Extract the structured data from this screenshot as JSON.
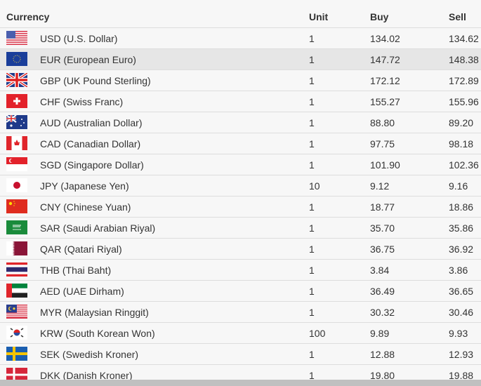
{
  "table": {
    "headers": [
      "Currency",
      "Unit",
      "Buy",
      "Sell"
    ],
    "highlight_color": "#e6e6e6",
    "rows": [
      {
        "flag": "us-flag-icon",
        "currency": "USD (U.S. Dollar)",
        "unit": "1",
        "buy": "134.02",
        "sell": "134.62"
      },
      {
        "flag": "eu-flag-icon",
        "currency": "EUR (European Euro)",
        "unit": "1",
        "buy": "147.72",
        "sell": "148.38",
        "highlighted": true
      },
      {
        "flag": "gb-flag-icon",
        "currency": "GBP (UK Pound Sterling)",
        "unit": "1",
        "buy": "172.12",
        "sell": "172.89"
      },
      {
        "flag": "ch-flag-icon",
        "currency": "CHF (Swiss Franc)",
        "unit": "1",
        "buy": "155.27",
        "sell": "155.96"
      },
      {
        "flag": "au-flag-icon",
        "currency": "AUD (Australian Dollar)",
        "unit": "1",
        "buy": "88.80",
        "sell": "89.20"
      },
      {
        "flag": "ca-flag-icon",
        "currency": "CAD (Canadian Dollar)",
        "unit": "1",
        "buy": "97.75",
        "sell": "98.18"
      },
      {
        "flag": "sg-flag-icon",
        "currency": "SGD (Singapore Dollar)",
        "unit": "1",
        "buy": "101.90",
        "sell": "102.36"
      },
      {
        "flag": "jp-flag-icon",
        "currency": "JPY (Japanese Yen)",
        "unit": "10",
        "buy": "9.12",
        "sell": "9.16"
      },
      {
        "flag": "cn-flag-icon",
        "currency": "CNY (Chinese Yuan)",
        "unit": "1",
        "buy": "18.77",
        "sell": "18.86"
      },
      {
        "flag": "sa-flag-icon",
        "currency": "SAR (Saudi Arabian Riyal)",
        "unit": "1",
        "buy": "35.70",
        "sell": "35.86"
      },
      {
        "flag": "qa-flag-icon",
        "currency": "QAR (Qatari Riyal)",
        "unit": "1",
        "buy": "36.75",
        "sell": "36.92"
      },
      {
        "flag": "th-flag-icon",
        "currency": "THB (Thai Baht)",
        "unit": "1",
        "buy": "3.84",
        "sell": "3.86"
      },
      {
        "flag": "ae-flag-icon",
        "currency": "AED (UAE Dirham)",
        "unit": "1",
        "buy": "36.49",
        "sell": "36.65"
      },
      {
        "flag": "my-flag-icon",
        "currency": "MYR (Malaysian Ringgit)",
        "unit": "1",
        "buy": "30.32",
        "sell": "30.46"
      },
      {
        "flag": "kr-flag-icon",
        "currency": "KRW (South Korean Won)",
        "unit": "100",
        "buy": "9.89",
        "sell": "9.93"
      },
      {
        "flag": "se-flag-icon",
        "currency": "SEK (Swedish Kroner)",
        "unit": "1",
        "buy": "12.88",
        "sell": "12.93"
      },
      {
        "flag": "dk-flag-icon",
        "currency": "DKK (Danish Kroner)",
        "unit": "1",
        "buy": "19.80",
        "sell": "19.88"
      }
    ]
  }
}
